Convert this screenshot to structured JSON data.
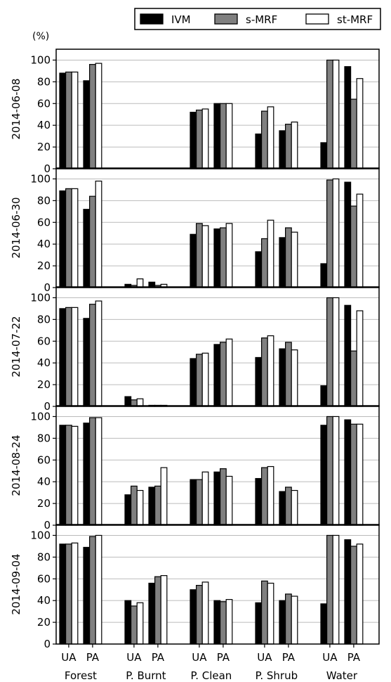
{
  "chart_data": {
    "type": "bar",
    "unit_label": "(%)",
    "legend": {
      "placement": "top-right",
      "entries": [
        {
          "name": "IVM",
          "color": "#000000"
        },
        {
          "name": "s-MRF",
          "color": "#808080"
        },
        {
          "name": "st-MRF",
          "color": "#ffffff"
        }
      ]
    },
    "ylim": [
      0,
      110
    ],
    "yticks": [
      0,
      20,
      40,
      60,
      80,
      100
    ],
    "grid": true,
    "groups": [
      "Forest",
      "P. Burnt",
      "P. Clean",
      "P. Shrub",
      "Water"
    ],
    "subcategories": [
      "UA",
      "PA"
    ],
    "panels": [
      {
        "date": "2014-06-08",
        "values": {
          "IVM": [
            88,
            81,
            0,
            0,
            52,
            60,
            32,
            35,
            24,
            94
          ],
          "s-MRF": [
            89,
            96,
            0,
            0,
            54,
            60,
            53,
            41,
            100,
            64
          ],
          "st-MRF": [
            89,
            97,
            0,
            0,
            55,
            60,
            57,
            43,
            100,
            83
          ]
        }
      },
      {
        "date": "2014-06-30",
        "values": {
          "IVM": [
            89,
            72,
            3,
            5,
            49,
            54,
            33,
            46,
            22,
            97
          ],
          "s-MRF": [
            91,
            84,
            2,
            2,
            59,
            55,
            45,
            55,
            99,
            75
          ],
          "st-MRF": [
            91,
            98,
            8,
            3,
            57,
            59,
            62,
            51,
            100,
            86
          ]
        }
      },
      {
        "date": "2014-07-22",
        "values": {
          "IVM": [
            90,
            81,
            9,
            1,
            44,
            57,
            45,
            53,
            19,
            93
          ],
          "s-MRF": [
            91,
            94,
            6,
            1,
            48,
            59,
            63,
            59,
            100,
            51
          ],
          "st-MRF": [
            91,
            97,
            7,
            1,
            49,
            62,
            65,
            52,
            100,
            88
          ]
        }
      },
      {
        "date": "2014-08-24",
        "values": {
          "IVM": [
            92,
            94,
            28,
            35,
            42,
            49,
            43,
            31,
            92,
            97
          ],
          "s-MRF": [
            92,
            99,
            36,
            36,
            42,
            52,
            53,
            35,
            100,
            93
          ],
          "st-MRF": [
            91,
            99,
            32,
            53,
            49,
            45,
            54,
            32,
            100,
            93
          ]
        }
      },
      {
        "date": "2014-09-04",
        "values": {
          "IVM": [
            92,
            89,
            40,
            56,
            50,
            40,
            38,
            40,
            37,
            96
          ],
          "s-MRF": [
            92,
            99,
            35,
            62,
            54,
            39,
            58,
            46,
            100,
            90
          ],
          "st-MRF": [
            93,
            100,
            38,
            63,
            57,
            41,
            56,
            44,
            100,
            92
          ]
        }
      }
    ]
  }
}
